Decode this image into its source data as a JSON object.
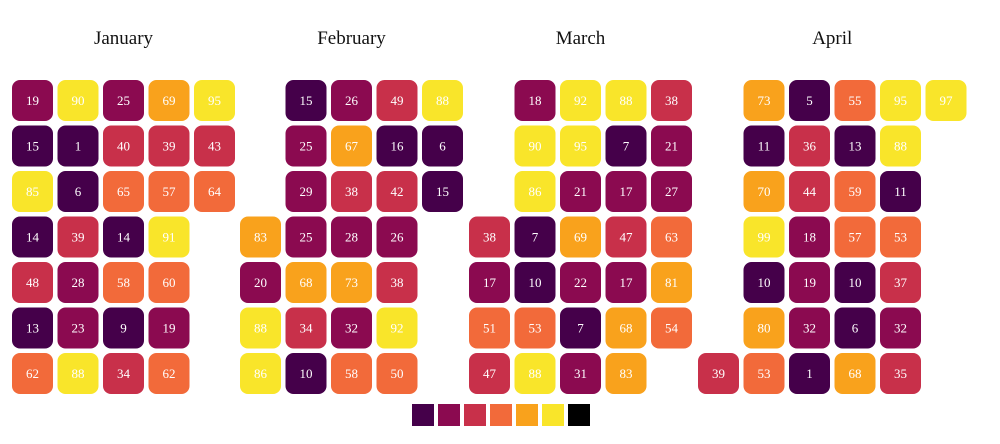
{
  "chart_data": {
    "type": "heatmap",
    "layout": "calendar",
    "colors": {
      "scale": [
        "#45004a",
        "#8b0a50",
        "#c8304a",
        "#f26a3a",
        "#f9a21c",
        "#f9e52a"
      ],
      "na": "#000000"
    },
    "months": [
      {
        "name": "January",
        "grid": [
          [
            19,
            90,
            25,
            69,
            95
          ],
          [
            15,
            1,
            40,
            39,
            43
          ],
          [
            85,
            6,
            65,
            57,
            64
          ],
          [
            14,
            39,
            14,
            91,
            null
          ],
          [
            48,
            28,
            58,
            60,
            null
          ],
          [
            13,
            23,
            9,
            19,
            null
          ],
          [
            62,
            88,
            34,
            62,
            null
          ]
        ]
      },
      {
        "name": "February",
        "grid": [
          [
            null,
            15,
            26,
            49,
            88
          ],
          [
            null,
            25,
            67,
            16,
            6
          ],
          [
            null,
            29,
            38,
            42,
            15
          ],
          [
            83,
            25,
            28,
            26,
            null
          ],
          [
            20,
            68,
            73,
            38,
            null
          ],
          [
            88,
            34,
            32,
            92,
            null
          ],
          [
            86,
            10,
            58,
            50,
            null
          ]
        ]
      },
      {
        "name": "March",
        "grid": [
          [
            null,
            18,
            92,
            88,
            38
          ],
          [
            null,
            90,
            95,
            7,
            21
          ],
          [
            null,
            86,
            21,
            17,
            27
          ],
          [
            38,
            7,
            69,
            47,
            63
          ],
          [
            17,
            10,
            22,
            17,
            81
          ],
          [
            51,
            53,
            7,
            68,
            54
          ],
          [
            47,
            88,
            31,
            83,
            null
          ]
        ]
      },
      {
        "name": "April",
        "grid": [
          [
            null,
            73,
            5,
            55,
            95,
            97
          ],
          [
            null,
            11,
            36,
            13,
            88,
            null
          ],
          [
            null,
            70,
            44,
            59,
            11,
            null
          ],
          [
            null,
            99,
            18,
            57,
            53,
            null
          ],
          [
            null,
            10,
            19,
            10,
            37,
            null
          ],
          [
            null,
            80,
            32,
            6,
            32,
            null
          ],
          [
            39,
            53,
            1,
            68,
            35,
            null
          ]
        ]
      }
    ],
    "legend": [
      "#45004a",
      "#8b0a50",
      "#c8304a",
      "#f26a3a",
      "#f9a21c",
      "#f9e52a",
      "#000000"
    ],
    "legend_position": "bottom-center"
  }
}
